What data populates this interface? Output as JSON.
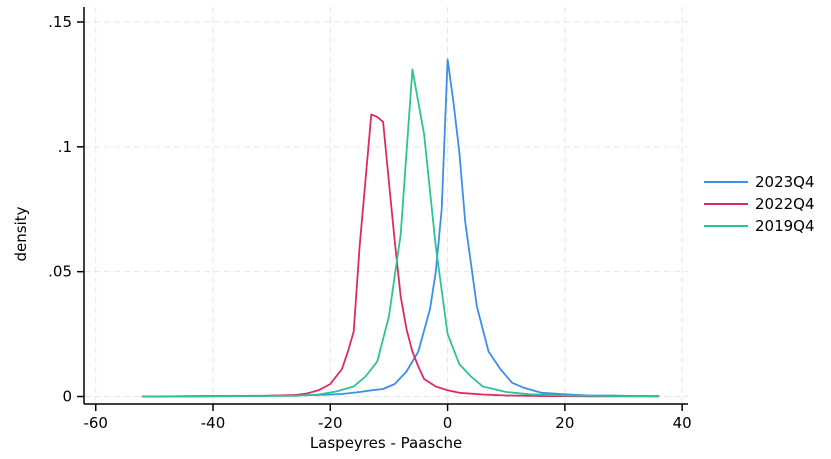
{
  "chart_data": {
    "type": "line",
    "title": "",
    "xlabel": "Laspeyres - Paasche",
    "ylabel": "density",
    "xlim": [
      -62,
      41
    ],
    "ylim": [
      -0.003,
      0.156
    ],
    "grid": true,
    "legend_position": "right",
    "x_ticks": [
      -60,
      -40,
      -20,
      0,
      20,
      40
    ],
    "x_tick_labels": [
      "-60",
      "-40",
      "-20",
      "0",
      "20",
      "40"
    ],
    "y_ticks": [
      0,
      0.05,
      0.1,
      0.15
    ],
    "y_tick_labels": [
      "0",
      ".05",
      ".1",
      ".15"
    ],
    "series": [
      {
        "name": "2023Q4",
        "color": "#3d8ee8",
        "x": [
          -52,
          -42,
          -32,
          -22,
          -18,
          -15,
          -13,
          -11,
          -9,
          -7,
          -5,
          -3,
          -2,
          -1,
          0,
          1,
          2,
          3,
          5,
          7,
          9,
          11,
          13,
          16,
          20,
          24,
          28,
          32,
          36
        ],
        "y": [
          0.0,
          0.0002,
          0.0003,
          0.0006,
          0.001,
          0.0018,
          0.0025,
          0.003,
          0.005,
          0.01,
          0.018,
          0.035,
          0.05,
          0.075,
          0.135,
          0.118,
          0.098,
          0.07,
          0.036,
          0.018,
          0.011,
          0.0055,
          0.0035,
          0.0015,
          0.0009,
          0.0004,
          0.0004,
          0.0002,
          0.0002
        ]
      },
      {
        "name": "2022Q4",
        "color": "#dc2a63",
        "x": [
          -52,
          -42,
          -32,
          -26,
          -24,
          -22,
          -20,
          -18,
          -17,
          -16,
          -15,
          -13,
          -12,
          -11,
          -10,
          -9,
          -8,
          -7,
          -6,
          -5,
          -4,
          -2,
          0,
          2,
          6,
          10,
          16,
          24,
          30,
          36
        ],
        "y": [
          0.0,
          0.0001,
          0.0002,
          0.0006,
          0.0012,
          0.0025,
          0.005,
          0.011,
          0.018,
          0.026,
          0.06,
          0.113,
          0.112,
          0.11,
          0.086,
          0.062,
          0.04,
          0.027,
          0.018,
          0.012,
          0.007,
          0.004,
          0.0025,
          0.0015,
          0.0008,
          0.0004,
          0.0002,
          0.0001,
          0.0001,
          0.0001
        ]
      },
      {
        "name": "2019Q4",
        "color": "#2cc395",
        "x": [
          -52,
          -42,
          -32,
          -26,
          -22,
          -19,
          -16,
          -14,
          -12,
          -10,
          -8,
          -6,
          -4,
          -2,
          0,
          2,
          4,
          6,
          10,
          14,
          20,
          28,
          36
        ],
        "y": [
          0.0,
          0.0001,
          0.0002,
          0.0003,
          0.0008,
          0.002,
          0.004,
          0.008,
          0.014,
          0.032,
          0.065,
          0.131,
          0.105,
          0.06,
          0.025,
          0.013,
          0.008,
          0.004,
          0.0018,
          0.0009,
          0.0004,
          0.0002,
          0.0001
        ]
      }
    ]
  }
}
